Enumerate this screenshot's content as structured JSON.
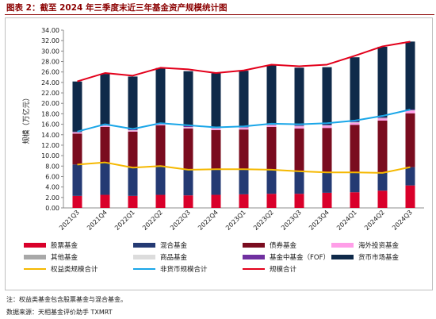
{
  "header": {
    "title": "图表 2：截至 2024 年三季度末近三年基金资产规模统计图"
  },
  "footer": {
    "note": "注：权益类基金包含股票基金与混合基金。",
    "source": "数据来源：天相基金评价助手 TXMRT"
  },
  "colors": {
    "title": "#8b0000",
    "stock": "#d9002a",
    "mixed": "#243a73",
    "bond": "#7a0c1f",
    "overseas": "#ff9ee8",
    "other": "#a8a8a8",
    "commodity": "#dcdcdc",
    "fof": "#7030a0",
    "money": "#0f2a4a",
    "equity_line": "#f5b800",
    "nonmoney_line": "#1aa6e8",
    "total_line": "#e3001b"
  },
  "chart_data": {
    "type": "bar",
    "stacked": true,
    "ylabel": "规模（万亿元）",
    "xlabel": "",
    "ylim": [
      0,
      34
    ],
    "yticks": [
      "0.00",
      "2.00",
      "4.00",
      "6.00",
      "8.00",
      "10.00",
      "12.00",
      "14.00",
      "16.00",
      "18.00",
      "20.00",
      "22.00",
      "24.00",
      "26.00",
      "28.00",
      "30.00",
      "32.00",
      "34.00"
    ],
    "grid": false,
    "legend_position": "bottom",
    "categories": [
      "2021Q3",
      "2021Q4",
      "2022Q1",
      "2022Q2",
      "2022Q3",
      "2022Q4",
      "2023Q1",
      "2023Q2",
      "2023Q3",
      "2023Q4",
      "2024Q1",
      "2024Q2",
      "2024Q3"
    ],
    "series": [
      {
        "name": "股票基金",
        "kind": "bar",
        "color_key": "stock",
        "values": [
          2.3,
          2.5,
          2.3,
          2.5,
          2.4,
          2.5,
          2.6,
          2.7,
          2.7,
          2.9,
          3.0,
          3.3,
          4.3
        ]
      },
      {
        "name": "混合基金",
        "kind": "bar",
        "color_key": "mixed",
        "values": [
          6.0,
          6.2,
          5.4,
          5.5,
          4.9,
          4.9,
          4.8,
          4.6,
          4.3,
          3.9,
          3.8,
          3.4,
          3.5
        ]
      },
      {
        "name": "债券基金",
        "kind": "bar",
        "color_key": "bond",
        "values": [
          5.9,
          6.8,
          6.9,
          7.8,
          7.9,
          7.5,
          7.6,
          8.2,
          8.2,
          8.5,
          9.1,
          10.0,
          10.3
        ]
      },
      {
        "name": "海外投资基金",
        "kind": "bar",
        "color_key": "overseas",
        "values": [
          0.2,
          0.2,
          0.2,
          0.2,
          0.2,
          0.3,
          0.3,
          0.3,
          0.4,
          0.4,
          0.4,
          0.4,
          0.5
        ]
      },
      {
        "name": "其他基金",
        "kind": "bar",
        "color_key": "other",
        "values": [
          0.05,
          0.05,
          0.05,
          0.05,
          0.05,
          0.05,
          0.05,
          0.05,
          0.05,
          0.05,
          0.05,
          0.05,
          0.05
        ]
      },
      {
        "name": "商品基金",
        "kind": "bar",
        "color_key": "commodity",
        "values": [
          0.03,
          0.03,
          0.03,
          0.03,
          0.03,
          0.03,
          0.03,
          0.03,
          0.03,
          0.04,
          0.04,
          0.05,
          0.05
        ]
      },
      {
        "name": "基金中基金（FOF）",
        "kind": "bar",
        "color_key": "fof",
        "values": [
          0.1,
          0.15,
          0.15,
          0.17,
          0.17,
          0.17,
          0.16,
          0.15,
          0.14,
          0.13,
          0.12,
          0.12,
          0.12
        ]
      },
      {
        "name": "货币市场基金",
        "kind": "bar",
        "color_key": "money",
        "values": [
          9.6,
          9.7,
          10.1,
          10.5,
          10.5,
          10.3,
          10.7,
          11.3,
          11.0,
          11.0,
          12.3,
          13.5,
          13.0
        ]
      },
      {
        "name": "权益类规模合计",
        "kind": "line",
        "color_key": "equity_line",
        "values": [
          8.3,
          8.7,
          7.7,
          8.0,
          7.3,
          7.4,
          7.4,
          7.3,
          7.0,
          6.8,
          6.8,
          6.7,
          7.8
        ]
      },
      {
        "name": "非货币规模合计",
        "kind": "line",
        "color_key": "nonmoney_line",
        "values": [
          14.6,
          16.0,
          15.1,
          16.2,
          15.8,
          15.4,
          15.6,
          16.1,
          16.0,
          16.2,
          16.7,
          17.6,
          18.8
        ]
      },
      {
        "name": "规模合计",
        "kind": "line",
        "color_key": "total_line",
        "values": [
          24.2,
          25.8,
          25.3,
          26.8,
          26.5,
          25.8,
          26.3,
          27.4,
          27.1,
          27.4,
          29.1,
          30.9,
          31.8
        ]
      }
    ],
    "legend_order": [
      "股票基金",
      "混合基金",
      "债券基金",
      "海外投资基金",
      "其他基金",
      "商品基金",
      "基金中基金（FOF）",
      "货币市场基金",
      "权益类规模合计",
      "非货币规模合计",
      "规模合计"
    ]
  }
}
